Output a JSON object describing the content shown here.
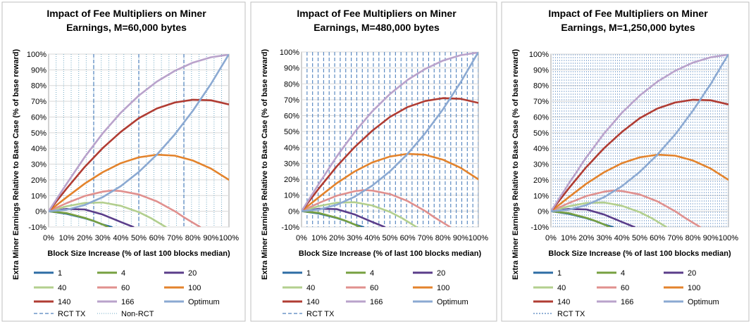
{
  "chart_data": [
    {
      "type": "line",
      "title_lines": [
        "Impact of Fee Multipliers on Miner",
        "Earnings, M=60,000 bytes"
      ],
      "xlabel": "Block Size Increase (% of last 100 blocks median)",
      "ylabel": "Extra Miner Earnings Relative to Base Case (% of base reward)",
      "xlim": [
        0,
        100
      ],
      "ylim": [
        -10,
        100
      ],
      "x_ticks": [
        "0%",
        "10%",
        "20%",
        "30%",
        "40%",
        "50%",
        "60%",
        "70%",
        "80%",
        "90%",
        "100%"
      ],
      "y_ticks": [
        "-10%",
        "0%",
        "10%",
        "20%",
        "30%",
        "40%",
        "50%",
        "60%",
        "70%",
        "80%",
        "90%",
        "100%"
      ],
      "rct_tx_x": [
        25,
        50,
        75
      ],
      "nonrct_spacing": 4.17,
      "series": [
        {
          "name": "1",
          "color": "#2e6da4",
          "x": [
            0,
            10,
            20,
            25,
            30,
            35
          ],
          "y": [
            0,
            -1.6,
            -4.4,
            -6.2,
            -8.4,
            -10
          ]
        },
        {
          "name": "4",
          "color": "#77a040",
          "x": [
            0,
            10,
            20,
            25,
            30,
            33
          ],
          "y": [
            0,
            -1.2,
            -4.2,
            -6.1,
            -8.4,
            -10
          ]
        },
        {
          "name": "20",
          "color": "#5a3d8a",
          "x": [
            0,
            10,
            20,
            30,
            40,
            47
          ],
          "y": [
            0,
            1.5,
            1.2,
            -2.1,
            -6.8,
            -10
          ]
        },
        {
          "name": "40",
          "color": "#b3cf8e",
          "x": [
            0,
            10,
            20,
            30,
            40,
            50,
            57,
            65
          ],
          "y": [
            0,
            3.2,
            5.3,
            5.6,
            3.5,
            -0.5,
            -4.5,
            -10
          ]
        },
        {
          "name": "60",
          "color": "#e0908e",
          "x": [
            0,
            10,
            20,
            30,
            35,
            40,
            50,
            60,
            70,
            75,
            84
          ],
          "y": [
            0,
            5.2,
            9.7,
            12.5,
            13.2,
            12.9,
            10.7,
            6.3,
            0,
            -3.8,
            -10
          ]
        },
        {
          "name": "100",
          "color": "#e3832c",
          "x": [
            0,
            10,
            20,
            30,
            40,
            50,
            60,
            70,
            80,
            90,
            100
          ],
          "y": [
            0,
            8.9,
            17.6,
            24.9,
            30.6,
            34.3,
            36,
            35.4,
            32.3,
            27.2,
            20
          ]
        },
        {
          "name": "140",
          "color": "#b03c33",
          "x": [
            0,
            10,
            20,
            30,
            40,
            50,
            60,
            70,
            80,
            90,
            100
          ],
          "y": [
            0,
            14.5,
            28.2,
            40.2,
            50.5,
            59.2,
            65.4,
            69.2,
            71,
            70.6,
            68
          ]
        },
        {
          "name": "166",
          "color": "#b9a2cb",
          "x": [
            0,
            10,
            20,
            30,
            40,
            50,
            60,
            70,
            80,
            90,
            100
          ],
          "y": [
            0,
            17.5,
            34.5,
            49.6,
            62.7,
            73.6,
            82.5,
            89.4,
            94.6,
            98,
            99.7
          ]
        },
        {
          "name": "Optimum",
          "color": "#8ba9d2",
          "x": [
            0,
            10,
            20,
            30,
            40,
            50,
            60,
            70,
            80,
            90,
            100
          ],
          "y": [
            0,
            1,
            4,
            9,
            16,
            25,
            36,
            49,
            64,
            81,
            100
          ]
        }
      ],
      "legend": [
        "1",
        "4",
        "20",
        "40",
        "60",
        "100",
        "140",
        "166",
        "Optimum",
        "RCT TX",
        "Non-RCT"
      ]
    },
    {
      "type": "line",
      "title_lines": [
        "Impact of Fee Multipliers on Miner",
        "Earnings, M=480,000 bytes"
      ],
      "xlabel": "Block Size Increase (% of last 100 blocks median)",
      "ylabel": "Extra Miner Earnings Relative to Base Case (% of base reward)",
      "xlim": [
        0,
        100
      ],
      "ylim": [
        -10,
        100
      ],
      "x_ticks": [
        "0%",
        "10%",
        "20%",
        "30%",
        "40%",
        "50%",
        "60%",
        "70%",
        "80%",
        "90%",
        "100%"
      ],
      "y_ticks": [
        "-10%",
        "0%",
        "10%",
        "20%",
        "30%",
        "40%",
        "50%",
        "60%",
        "70%",
        "80%",
        "90%",
        "100%"
      ],
      "rct_tx_spacing": 3.125,
      "series": [
        {
          "name": "1",
          "color": "#2e6da4",
          "x": [
            0,
            10,
            20,
            25,
            30,
            35
          ],
          "y": [
            0,
            -1.6,
            -4.4,
            -6.2,
            -8.4,
            -10
          ]
        },
        {
          "name": "4",
          "color": "#77a040",
          "x": [
            0,
            10,
            20,
            25,
            30,
            33
          ],
          "y": [
            0,
            -1.2,
            -4.2,
            -6.1,
            -8.4,
            -10
          ]
        },
        {
          "name": "20",
          "color": "#5a3d8a",
          "x": [
            0,
            10,
            20,
            30,
            40,
            47
          ],
          "y": [
            0,
            1.5,
            1.2,
            -2.1,
            -6.8,
            -10
          ]
        },
        {
          "name": "40",
          "color": "#b3cf8e",
          "x": [
            0,
            10,
            20,
            30,
            40,
            50,
            57,
            65
          ],
          "y": [
            0,
            3.2,
            5.3,
            5.6,
            3.5,
            -0.5,
            -4.5,
            -10
          ]
        },
        {
          "name": "60",
          "color": "#e0908e",
          "x": [
            0,
            10,
            20,
            30,
            35,
            40,
            50,
            60,
            70,
            75,
            84
          ],
          "y": [
            0,
            5.2,
            9.7,
            12.5,
            13.2,
            12.9,
            10.7,
            6.3,
            0,
            -3.8,
            -10
          ]
        },
        {
          "name": "100",
          "color": "#e3832c",
          "x": [
            0,
            10,
            20,
            30,
            40,
            50,
            60,
            70,
            80,
            90,
            100
          ],
          "y": [
            0,
            8.9,
            17.6,
            24.9,
            30.6,
            34.3,
            36,
            35.4,
            32.3,
            27.2,
            20
          ]
        },
        {
          "name": "140",
          "color": "#b03c33",
          "x": [
            0,
            10,
            20,
            30,
            40,
            50,
            60,
            70,
            80,
            90,
            100
          ],
          "y": [
            0,
            14.5,
            28.2,
            40.2,
            50.5,
            59.2,
            65.4,
            69.2,
            71,
            70.6,
            68
          ]
        },
        {
          "name": "166",
          "color": "#b9a2cb",
          "x": [
            0,
            10,
            20,
            30,
            40,
            50,
            60,
            70,
            80,
            90,
            100
          ],
          "y": [
            0,
            17.5,
            34.5,
            49.6,
            62.7,
            73.6,
            82.5,
            89.4,
            94.6,
            98,
            99.7
          ]
        },
        {
          "name": "Optimum",
          "color": "#8ba9d2",
          "x": [
            0,
            10,
            20,
            30,
            40,
            50,
            60,
            70,
            80,
            90,
            100
          ],
          "y": [
            0,
            1,
            4,
            9,
            16,
            25,
            36,
            49,
            64,
            81,
            100
          ]
        }
      ],
      "legend": [
        "1",
        "4",
        "20",
        "40",
        "60",
        "100",
        "140",
        "166",
        "Optimum",
        "RCT TX"
      ]
    },
    {
      "type": "line",
      "title_lines": [
        "Impact of Fee Multipliers on Miner",
        "Earnings, M=1,250,000 bytes"
      ],
      "xlabel": "Block Size Increase (% of last 100 blocks median)",
      "ylabel": "Extra Miner Earnings Relative to Base Case (% of base reward)",
      "xlim": [
        0,
        100
      ],
      "ylim": [
        -10,
        100
      ],
      "x_ticks": [
        "0%",
        "10%",
        "20%",
        "30%",
        "40%",
        "50%",
        "60%",
        "70%",
        "80%",
        "90%",
        "100%"
      ],
      "y_ticks": [
        "-10%",
        "0%",
        "10%",
        "20%",
        "30%",
        "40%",
        "50%",
        "60%",
        "70%",
        "80%",
        "90%",
        "100%"
      ],
      "rct_tx_spacing": 1.25,
      "series": [
        {
          "name": "1",
          "color": "#2e6da4",
          "x": [
            0,
            10,
            20,
            25,
            30,
            35
          ],
          "y": [
            0,
            -1.6,
            -4.4,
            -6.2,
            -8.4,
            -10
          ]
        },
        {
          "name": "4",
          "color": "#77a040",
          "x": [
            0,
            10,
            20,
            25,
            30,
            33
          ],
          "y": [
            0,
            -1.2,
            -4.2,
            -6.1,
            -8.4,
            -10
          ]
        },
        {
          "name": "20",
          "color": "#5a3d8a",
          "x": [
            0,
            10,
            20,
            30,
            40,
            47
          ],
          "y": [
            0,
            1.5,
            1.2,
            -2.1,
            -6.8,
            -10
          ]
        },
        {
          "name": "40",
          "color": "#b3cf8e",
          "x": [
            0,
            10,
            20,
            30,
            40,
            50,
            57,
            65
          ],
          "y": [
            0,
            3.2,
            5.3,
            5.6,
            3.5,
            -0.5,
            -4.5,
            -10
          ]
        },
        {
          "name": "60",
          "color": "#e0908e",
          "x": [
            0,
            10,
            20,
            30,
            35,
            40,
            50,
            60,
            70,
            75,
            84
          ],
          "y": [
            0,
            5.2,
            9.7,
            12.5,
            13.2,
            12.9,
            10.7,
            6.3,
            0,
            -3.8,
            -10
          ]
        },
        {
          "name": "100",
          "color": "#e3832c",
          "x": [
            0,
            10,
            20,
            30,
            40,
            50,
            60,
            70,
            80,
            90,
            100
          ],
          "y": [
            0,
            8.9,
            17.6,
            24.9,
            30.6,
            34.3,
            36,
            35.4,
            32.3,
            27.2,
            20
          ]
        },
        {
          "name": "140",
          "color": "#b03c33",
          "x": [
            0,
            10,
            20,
            30,
            40,
            50,
            60,
            70,
            80,
            90,
            100
          ],
          "y": [
            0,
            14.5,
            28.2,
            40.2,
            50.5,
            59.2,
            65.4,
            69.2,
            71,
            70.6,
            68
          ]
        },
        {
          "name": "166",
          "color": "#b9a2cb",
          "x": [
            0,
            10,
            20,
            30,
            40,
            50,
            60,
            70,
            80,
            90,
            100
          ],
          "y": [
            0,
            17.5,
            34.5,
            49.6,
            62.7,
            73.6,
            82.5,
            89.4,
            94.6,
            98,
            99.7
          ]
        },
        {
          "name": "Optimum",
          "color": "#8ba9d2",
          "x": [
            0,
            10,
            20,
            30,
            40,
            50,
            60,
            70,
            80,
            90,
            100
          ],
          "y": [
            0,
            1,
            4,
            9,
            16,
            25,
            36,
            49,
            64,
            81,
            100
          ]
        }
      ],
      "legend": [
        "1",
        "4",
        "20",
        "40",
        "60",
        "100",
        "140",
        "166",
        "Optimum",
        "RCT TX"
      ]
    }
  ],
  "styles": {
    "rct_color": "#4f81bd",
    "nonrct_color": "#6fa8c4",
    "grid_color": "#d9d9d9",
    "frame_color": "#bfbfbf"
  }
}
